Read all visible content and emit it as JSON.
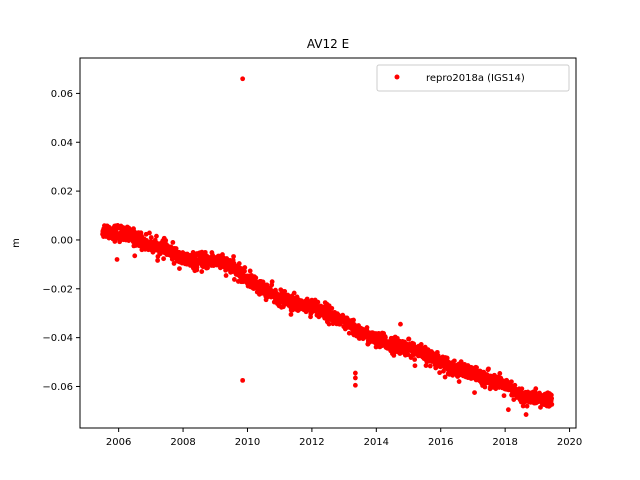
{
  "chart_data": {
    "type": "scatter",
    "title": "AV12 E",
    "xlabel": "",
    "ylabel": "m",
    "xlim": [
      2004.8,
      2020.2
    ],
    "ylim": [
      -0.077,
      0.0745
    ],
    "x_ticks": [
      2006,
      2008,
      2010,
      2012,
      2014,
      2016,
      2018,
      2020
    ],
    "y_ticks": [
      0.06,
      0.04,
      0.02,
      0.0,
      -0.02,
      -0.04,
      -0.06
    ],
    "y_tick_labels": [
      "0.06",
      "0.04",
      "0.02",
      "0.00",
      "−0.02",
      "−0.04",
      "−0.06"
    ],
    "grid": false,
    "legend_position": "top-right",
    "series": [
      {
        "name": "repro2018a (IGS14)",
        "color": "#ff0000",
        "marker": "circle",
        "trend": [
          [
            2005.5,
            0.004
          ],
          [
            2006.0,
            0.003
          ],
          [
            2006.5,
            0.001
          ],
          [
            2007.0,
            -0.002
          ],
          [
            2007.5,
            -0.004
          ],
          [
            2008.0,
            -0.008
          ],
          [
            2008.5,
            -0.009
          ],
          [
            2009.0,
            -0.008
          ],
          [
            2009.5,
            -0.011
          ],
          [
            2010.0,
            -0.016
          ],
          [
            2010.5,
            -0.02
          ],
          [
            2011.0,
            -0.024
          ],
          [
            2011.5,
            -0.026
          ],
          [
            2012.0,
            -0.027
          ],
          [
            2012.5,
            -0.03
          ],
          [
            2013.0,
            -0.034
          ],
          [
            2013.5,
            -0.038
          ],
          [
            2014.0,
            -0.041
          ],
          [
            2014.5,
            -0.043
          ],
          [
            2015.0,
            -0.044
          ],
          [
            2015.5,
            -0.047
          ],
          [
            2016.0,
            -0.05
          ],
          [
            2016.5,
            -0.053
          ],
          [
            2017.0,
            -0.055
          ],
          [
            2017.5,
            -0.057
          ],
          [
            2018.0,
            -0.06
          ],
          [
            2018.5,
            -0.064
          ],
          [
            2019.0,
            -0.065
          ],
          [
            2019.45,
            -0.066
          ]
        ],
        "outliers": [
          [
            2009.85,
            0.066
          ],
          [
            2009.85,
            -0.0575
          ],
          [
            2013.35,
            -0.0545
          ],
          [
            2013.35,
            -0.0565
          ],
          [
            2013.35,
            -0.0595
          ],
          [
            2005.95,
            -0.008
          ],
          [
            2006.5,
            -0.0065
          ],
          [
            2008.95,
            -0.0105
          ],
          [
            2011.35,
            -0.0305
          ],
          [
            2014.75,
            -0.0345
          ],
          [
            2015.2,
            -0.0515
          ],
          [
            2017.05,
            -0.0625
          ],
          [
            2018.1,
            -0.0695
          ],
          [
            2018.65,
            -0.0715
          ]
        ]
      }
    ]
  }
}
